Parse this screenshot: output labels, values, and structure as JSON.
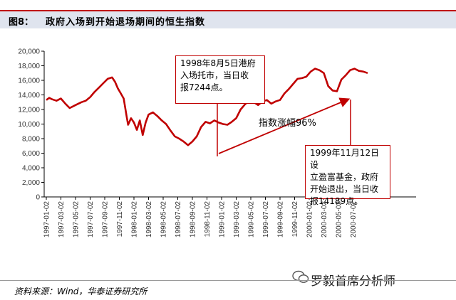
{
  "top_strip_text": "",
  "header": {
    "fig_label": "图8：",
    "title": "政府入场到开始退场期间的恒生指数"
  },
  "annotations": {
    "box1_lines": [
      "1998年8月5日港府",
      "入场托市，当日收",
      "报7244点。"
    ],
    "mid_label": "指数涨幅96%",
    "box2_lines": [
      "1999年11月12日设",
      "立盈富基金，政府",
      "开始退出，当日收",
      "报14189点。"
    ]
  },
  "footer": {
    "source": "资料来源：Wind，华泰证券研究所",
    "watermark": "罗毅首席分析师"
  },
  "colors": {
    "line": "#c00000",
    "header_bg": "#dfe4ee",
    "accent": "#c00000"
  },
  "chart_data": {
    "type": "line",
    "title": "政府入场到开始退场期间的恒生指数",
    "xlabel": "",
    "ylabel": "",
    "ylim": [
      0,
      20000
    ],
    "grid": false,
    "y_ticks": [
      0,
      2000,
      4000,
      6000,
      8000,
      10000,
      12000,
      14000,
      16000,
      18000,
      20000
    ],
    "y_tick_labels": [
      "0",
      "2,000",
      "4,000",
      "6,000",
      "8,000",
      "10,000",
      "12,000",
      "14,000",
      "16,000",
      "18,000",
      "20,000"
    ],
    "x_tick_labels": [
      "1997-01-02",
      "1997-03-02",
      "1997-05-02",
      "1997-07-02",
      "1997-09-02",
      "1997-11-02",
      "1998-01-02",
      "1998-03-02",
      "1998-05-02",
      "1998-07-02",
      "1998-09-02",
      "1998-11-02",
      "1999-01-02",
      "1999-03-02",
      "1999-05-02",
      "1999-07-02",
      "1999-09-02",
      "1999-11-02",
      "2000-01-02",
      "2000-03-02",
      "2000-05-02",
      "2000-07-02"
    ],
    "series": [
      {
        "values": [
          [
            0,
            13300
          ],
          [
            0.2,
            13600
          ],
          [
            0.4,
            13400
          ],
          [
            0.7,
            13200
          ],
          [
            1.0,
            13500
          ],
          [
            1.3,
            12800
          ],
          [
            1.6,
            12200
          ],
          [
            2.0,
            12600
          ],
          [
            2.4,
            13000
          ],
          [
            2.7,
            13200
          ],
          [
            3.0,
            13700
          ],
          [
            3.3,
            14400
          ],
          [
            3.6,
            15000
          ],
          [
            3.9,
            15600
          ],
          [
            4.2,
            16200
          ],
          [
            4.5,
            16400
          ],
          [
            4.7,
            15800
          ],
          [
            4.9,
            14900
          ],
          [
            5.1,
            14200
          ],
          [
            5.3,
            13500
          ],
          [
            5.5,
            11000
          ],
          [
            5.6,
            9900
          ],
          [
            5.8,
            10800
          ],
          [
            6.0,
            10200
          ],
          [
            6.2,
            9200
          ],
          [
            6.4,
            10500
          ],
          [
            6.6,
            8500
          ],
          [
            6.8,
            10200
          ],
          [
            7.0,
            11300
          ],
          [
            7.3,
            11600
          ],
          [
            7.6,
            11100
          ],
          [
            7.9,
            10500
          ],
          [
            8.2,
            10000
          ],
          [
            8.5,
            9100
          ],
          [
            8.8,
            8300
          ],
          [
            9.1,
            8000
          ],
          [
            9.4,
            7600
          ],
          [
            9.7,
            7100
          ],
          [
            10.0,
            7600
          ],
          [
            10.3,
            8300
          ],
          [
            10.6,
            9600
          ],
          [
            10.9,
            10300
          ],
          [
            11.2,
            10100
          ],
          [
            11.5,
            10500
          ],
          [
            11.8,
            10200
          ],
          [
            12.1,
            10000
          ],
          [
            12.4,
            9900
          ],
          [
            12.7,
            10300
          ],
          [
            13.0,
            10800
          ],
          [
            13.3,
            12000
          ],
          [
            13.6,
            12700
          ],
          [
            13.9,
            13200
          ],
          [
            14.2,
            13000
          ],
          [
            14.5,
            12600
          ],
          [
            14.8,
            13100
          ],
          [
            15.1,
            13300
          ],
          [
            15.4,
            12800
          ],
          [
            15.7,
            13100
          ],
          [
            16.0,
            13300
          ],
          [
            16.3,
            14200
          ],
          [
            16.6,
            14800
          ],
          [
            16.9,
            15500
          ],
          [
            17.2,
            16200
          ],
          [
            17.5,
            16300
          ],
          [
            17.8,
            16500
          ],
          [
            18.1,
            17200
          ],
          [
            18.4,
            17600
          ],
          [
            18.7,
            17400
          ],
          [
            19.0,
            17000
          ],
          [
            19.3,
            15200
          ],
          [
            19.6,
            14600
          ],
          [
            19.9,
            14500
          ],
          [
            20.2,
            16100
          ],
          [
            20.5,
            16700
          ],
          [
            20.8,
            17400
          ],
          [
            21.1,
            17600
          ],
          [
            21.4,
            17300
          ],
          [
            21.7,
            17200
          ],
          [
            22.0,
            17000
          ]
        ]
      }
    ]
  }
}
